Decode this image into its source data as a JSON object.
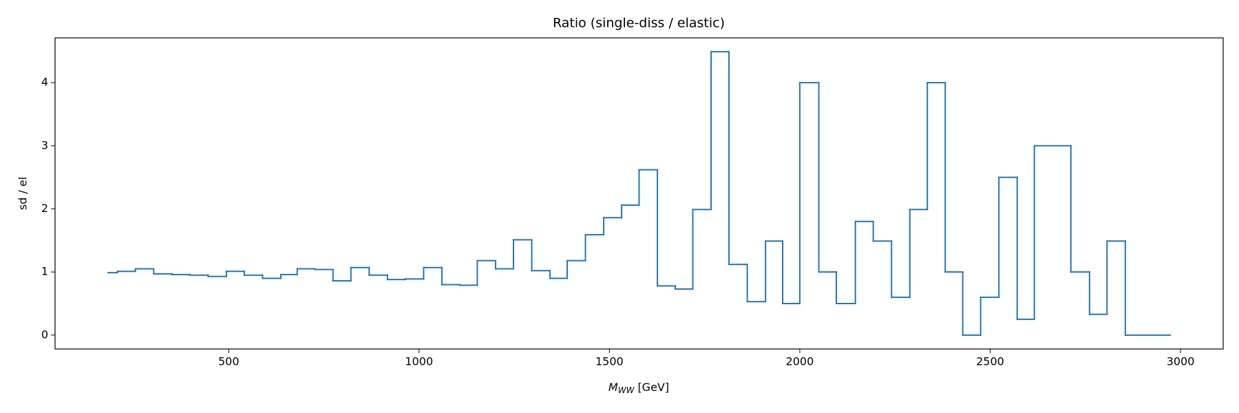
{
  "chart_data": {
    "type": "histogram",
    "title": "Ratio (single-diss / elastic)",
    "xlabel": {
      "symbol": "M",
      "subscript": "WW",
      "unit": "[GeV]"
    },
    "ylabel": "sd / el",
    "bins": [
      183,
      208,
      255,
      303,
      351,
      398,
      446,
      494,
      541,
      589,
      637,
      680,
      726,
      774,
      821,
      869,
      917,
      964,
      1012,
      1060,
      1107,
      1153,
      1201,
      1248,
      1296,
      1344,
      1389,
      1437,
      1485,
      1532,
      1578,
      1626,
      1673,
      1719,
      1767,
      1814,
      1862,
      1910,
      1955,
      2000,
      2050,
      2096,
      2146,
      2193,
      2241,
      2289,
      2335,
      2382,
      2428,
      2475,
      2523,
      2571,
      2616,
      2712,
      2761,
      2807,
      2855,
      2973
    ],
    "values": [
      0.99,
      1.01,
      1.05,
      0.97,
      0.96,
      0.95,
      0.93,
      1.01,
      0.95,
      0.9,
      0.96,
      1.05,
      1.04,
      0.86,
      1.07,
      0.95,
      0.88,
      0.89,
      1.07,
      0.8,
      0.79,
      1.18,
      1.05,
      1.51,
      1.02,
      0.9,
      1.18,
      1.59,
      1.86,
      2.06,
      2.62,
      0.78,
      0.73,
      1.99,
      4.49,
      1.12,
      0.53,
      1.49,
      0.5,
      4.0,
      1.0,
      0.5,
      1.8,
      1.49,
      0.6,
      1.99,
      4.0,
      1.0,
      0,
      0.6,
      2.5,
      0.25,
      3.0,
      1.0,
      0.33,
      1.49,
      0
    ],
    "color": "#1f77b4",
    "xlim": [
      44,
      3112
    ],
    "xticks": [
      500,
      1000,
      1500,
      2000,
      2500,
      3000
    ],
    "ylim": [
      -0.22,
      4.71
    ],
    "yticks": [
      0,
      1,
      2,
      3,
      4
    ]
  }
}
